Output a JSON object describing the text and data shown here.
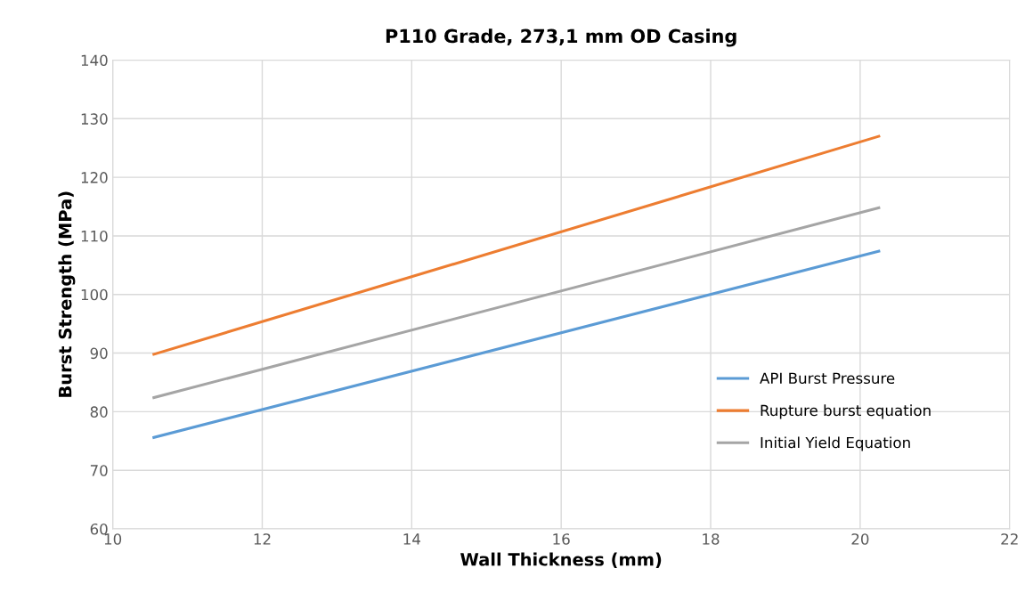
{
  "chart_data": {
    "type": "line",
    "title": "P110 Grade, 273,1 mm OD Casing",
    "xlabel": "Wall Thickness (mm)",
    "ylabel": "Burst Strength (MPa)",
    "x": [
      10.55,
      20.25
    ],
    "series": [
      {
        "name": "API Burst Pressure",
        "color": "#5b9bd5",
        "values": [
          75.6,
          107.4
        ]
      },
      {
        "name": "Rupture burst equation",
        "color": "#ed7d31",
        "values": [
          89.8,
          127.0
        ]
      },
      {
        "name": "Initial Yield Equation",
        "color": "#a5a5a5",
        "values": [
          82.4,
          114.8
        ]
      }
    ],
    "xlim": [
      10,
      22
    ],
    "xticks": [
      10,
      12,
      14,
      16,
      18,
      20,
      22
    ],
    "ylim": [
      60,
      140
    ],
    "yticks": [
      60,
      70,
      80,
      90,
      100,
      110,
      120,
      130,
      140
    ],
    "grid": true,
    "legend": "right",
    "marker": "none",
    "line_style": "solid"
  }
}
